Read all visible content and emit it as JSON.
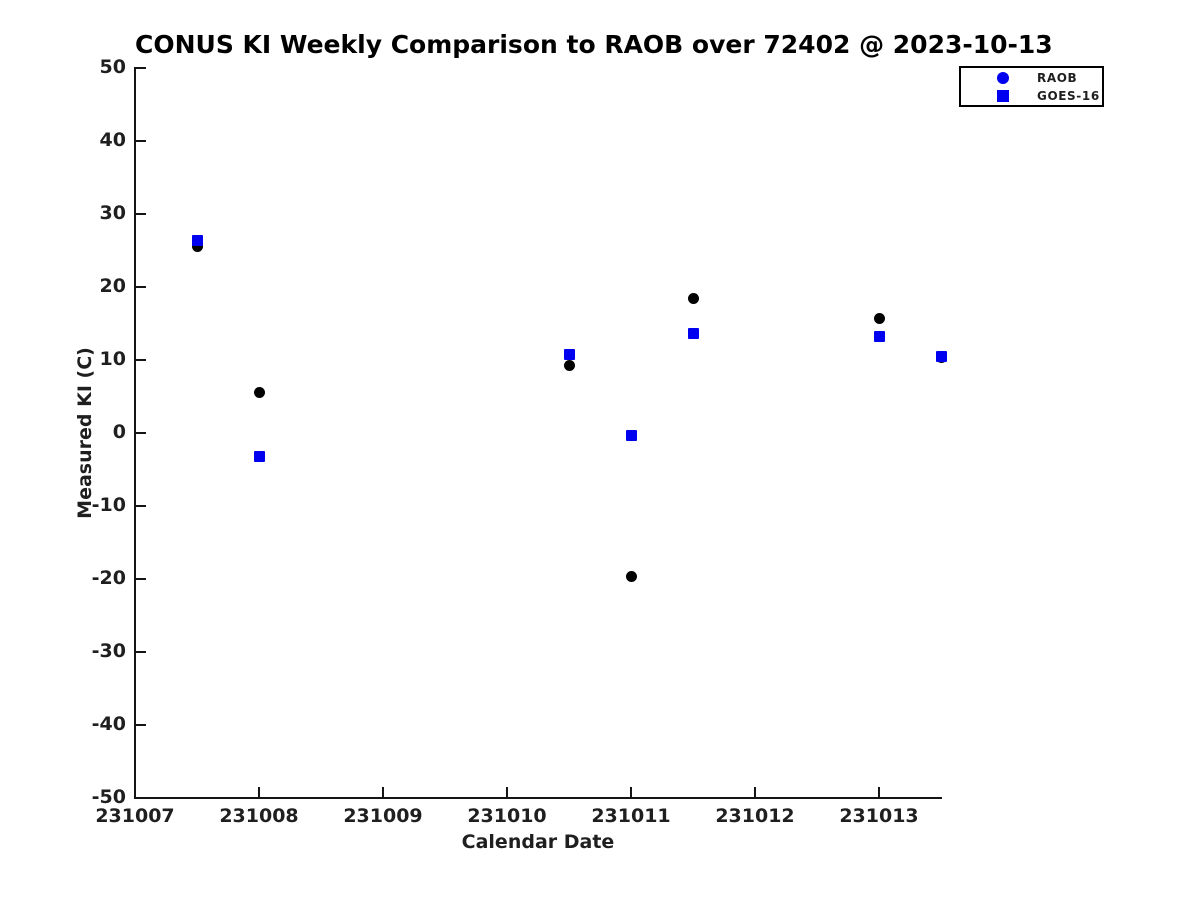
{
  "chart_data": {
    "type": "scatter",
    "title": "CONUS KI Weekly Comparison to RAOB over 72402 @ 2023-10-13",
    "xlabel": "Calendar Date",
    "ylabel": "Measured KI (C)",
    "xlim": [
      231007,
      231013.5
    ],
    "ylim": [
      -50,
      50
    ],
    "xticks": [
      231007,
      231008,
      231009,
      231010,
      231011,
      231012,
      231013
    ],
    "yticks": [
      50,
      40,
      30,
      20,
      10,
      0,
      -10,
      -20,
      -30,
      -40,
      -50
    ],
    "grid": false,
    "background_color": "#ffffff",
    "axis_color": "#151515",
    "legend": {
      "position": "top-right",
      "entries": [
        {
          "label": "RAOB",
          "marker": "circle",
          "color": "#0000f0"
        },
        {
          "label": "GOES-16",
          "marker": "square",
          "color": "#0000f0"
        }
      ]
    },
    "series": [
      {
        "name": "RAOB",
        "marker": "circle",
        "color": "#000000",
        "points": [
          {
            "x": 231007.5,
            "y": 25.6
          },
          {
            "x": 231008.0,
            "y": 5.5
          },
          {
            "x": 231010.5,
            "y": 9.3
          },
          {
            "x": 231011.0,
            "y": -19.7
          },
          {
            "x": 231011.5,
            "y": 18.4
          },
          {
            "x": 231013.0,
            "y": 15.7
          },
          {
            "x": 231013.5,
            "y": 10.4
          }
        ]
      },
      {
        "name": "GOES-16",
        "marker": "square",
        "color": "#0000f0",
        "points": [
          {
            "x": 231007.5,
            "y": 26.4
          },
          {
            "x": 231008.0,
            "y": -3.2
          },
          {
            "x": 231010.5,
            "y": 10.7
          },
          {
            "x": 231011.0,
            "y": -0.4
          },
          {
            "x": 231011.5,
            "y": 13.6
          },
          {
            "x": 231013.0,
            "y": 13.2
          },
          {
            "x": 231013.5,
            "y": 10.5
          }
        ]
      }
    ]
  }
}
